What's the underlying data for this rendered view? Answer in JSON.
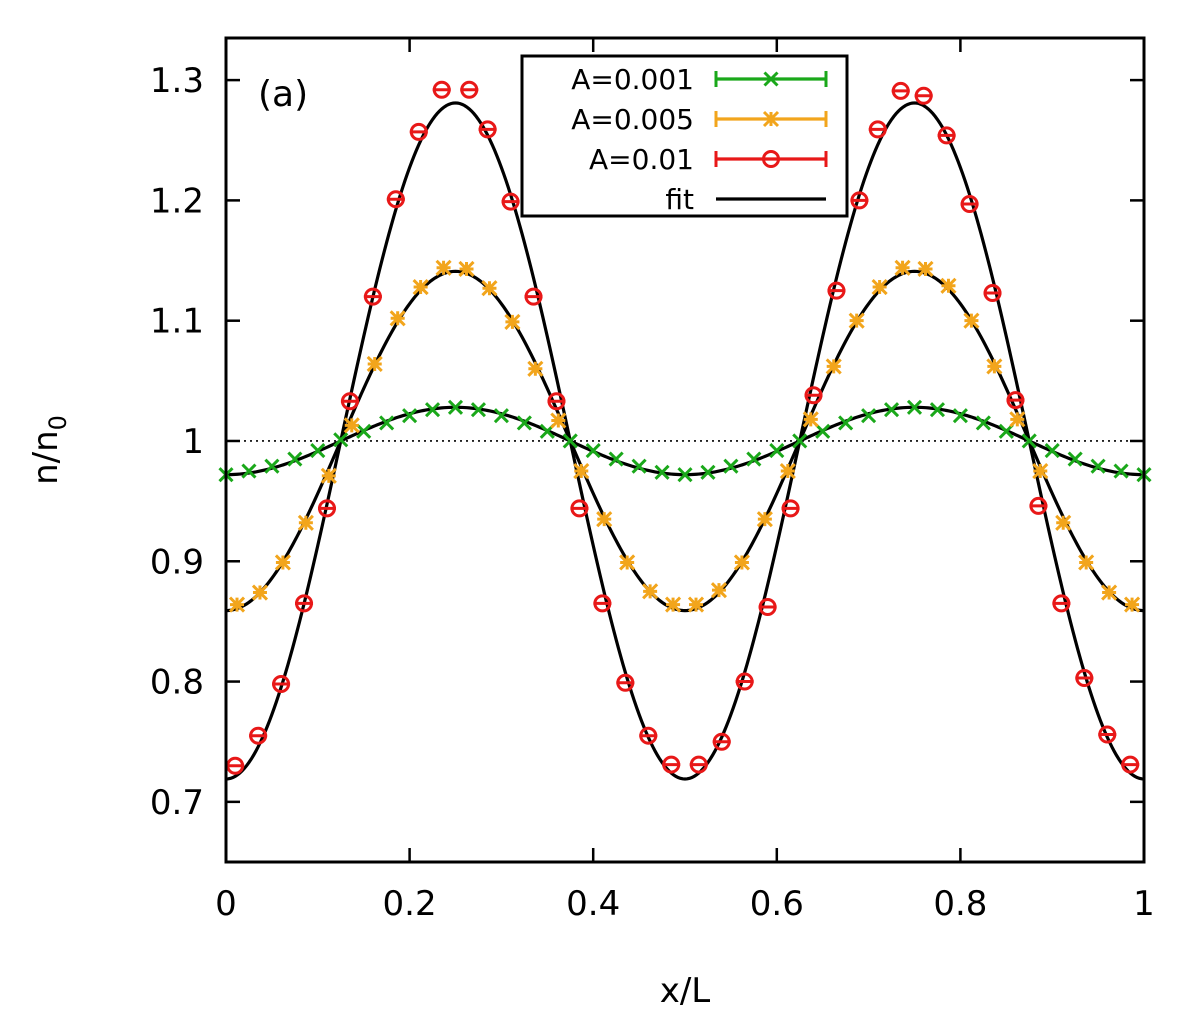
{
  "chart_data": {
    "type": "line",
    "title": "",
    "panel_label": "(a)",
    "xlabel": "x/L",
    "ylabel_main": "n/n",
    "ylabel_sub": "0",
    "xlim": [
      0,
      1
    ],
    "ylim": [
      0.65,
      1.335
    ],
    "xticks": [
      0,
      0.2,
      0.4,
      0.6,
      0.8,
      1
    ],
    "xtick_labels": [
      "0",
      "0.2",
      "0.4",
      "0.6",
      "0.8",
      "1"
    ],
    "yticks": [
      0.7,
      0.8,
      0.9,
      1.0,
      1.1,
      1.2,
      1.3
    ],
    "ytick_labels": [
      "0.7",
      "0.8",
      "0.9",
      "1",
      "1.1",
      "1.2",
      "1.3"
    ],
    "reference_line": {
      "y": 1.0,
      "style": "dotted"
    },
    "legend_position": "top-center",
    "series": [
      {
        "name": "A=0.001",
        "color": "#1aa81a",
        "marker": "x",
        "x": [
          0.0,
          0.025,
          0.05,
          0.075,
          0.1,
          0.125,
          0.15,
          0.175,
          0.2,
          0.225,
          0.25,
          0.275,
          0.3,
          0.325,
          0.35,
          0.375,
          0.4,
          0.425,
          0.45,
          0.475,
          0.5,
          0.525,
          0.55,
          0.575,
          0.6,
          0.625,
          0.65,
          0.675,
          0.7,
          0.725,
          0.75,
          0.775,
          0.8,
          0.825,
          0.85,
          0.875,
          0.9,
          0.925,
          0.95,
          0.975,
          1.0
        ],
        "values": [
          0.972,
          0.975,
          0.979,
          0.985,
          0.992,
          1.001,
          1.008,
          1.015,
          1.021,
          1.026,
          1.028,
          1.026,
          1.021,
          1.015,
          1.008,
          1.0,
          0.992,
          0.985,
          0.979,
          0.974,
          0.972,
          0.974,
          0.979,
          0.985,
          0.992,
          1.0,
          1.008,
          1.015,
          1.021,
          1.026,
          1.028,
          1.026,
          1.021,
          1.015,
          1.008,
          1.0,
          0.992,
          0.985,
          0.979,
          0.975,
          0.972
        ]
      },
      {
        "name": "A=0.005",
        "color": "#f2a51c",
        "marker": "*",
        "x": [
          0.012,
          0.037,
          0.062,
          0.087,
          0.112,
          0.137,
          0.162,
          0.187,
          0.212,
          0.237,
          0.262,
          0.287,
          0.312,
          0.337,
          0.362,
          0.387,
          0.412,
          0.437,
          0.462,
          0.487,
          0.512,
          0.537,
          0.562,
          0.587,
          0.612,
          0.637,
          0.662,
          0.687,
          0.712,
          0.737,
          0.762,
          0.787,
          0.812,
          0.837,
          0.862,
          0.887,
          0.912,
          0.937,
          0.962,
          0.987
        ],
        "values": [
          0.864,
          0.874,
          0.899,
          0.932,
          0.971,
          1.013,
          1.064,
          1.102,
          1.128,
          1.144,
          1.143,
          1.127,
          1.099,
          1.06,
          1.017,
          0.975,
          0.935,
          0.899,
          0.875,
          0.864,
          0.864,
          0.876,
          0.899,
          0.935,
          0.975,
          1.018,
          1.062,
          1.1,
          1.128,
          1.144,
          1.143,
          1.129,
          1.1,
          1.062,
          1.018,
          0.975,
          0.932,
          0.899,
          0.874,
          0.864
        ]
      },
      {
        "name": "A=0.01",
        "color": "#e81818",
        "marker": "o",
        "x": [
          0.01,
          0.035,
          0.06,
          0.085,
          0.11,
          0.135,
          0.16,
          0.185,
          0.21,
          0.235,
          0.265,
          0.285,
          0.31,
          0.335,
          0.36,
          0.385,
          0.41,
          0.435,
          0.46,
          0.485,
          0.515,
          0.54,
          0.565,
          0.59,
          0.615,
          0.64,
          0.665,
          0.69,
          0.71,
          0.735,
          0.76,
          0.785,
          0.81,
          0.835,
          0.86,
          0.885,
          0.91,
          0.935,
          0.96,
          0.985
        ],
        "values": [
          0.73,
          0.755,
          0.798,
          0.865,
          0.944,
          1.033,
          1.12,
          1.201,
          1.257,
          1.292,
          1.292,
          1.259,
          1.199,
          1.12,
          1.033,
          0.944,
          0.865,
          0.799,
          0.755,
          0.731,
          0.731,
          0.75,
          0.8,
          0.862,
          0.944,
          1.038,
          1.125,
          1.2,
          1.259,
          1.291,
          1.287,
          1.254,
          1.197,
          1.123,
          1.034,
          0.946,
          0.865,
          0.803,
          0.756,
          0.731
        ]
      },
      {
        "name": "fit",
        "color": "#000000",
        "marker": "none",
        "curves": [
          {
            "offset": 1.0,
            "amplitude": 0.028
          },
          {
            "offset": 1.0,
            "amplitude": 0.141
          },
          {
            "offset": 1.0,
            "amplitude": 0.281
          }
        ]
      }
    ]
  }
}
